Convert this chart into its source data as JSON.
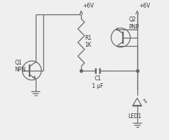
{
  "bg_color": "#efefef",
  "line_color": "#666666",
  "text_color": "#333333",
  "fig_width": 2.46,
  "fig_height": 2.05,
  "dpi": 100,
  "labels": {
    "q1": "Q1\nNPN",
    "q2": "Q2\nPNP",
    "r1": "R1\n1K",
    "c1": "C1\n1 µF",
    "led1": "LED1",
    "v1": "+6V",
    "v2": "+6V"
  }
}
